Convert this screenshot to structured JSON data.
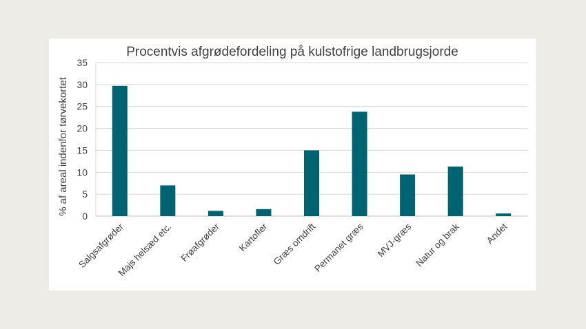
{
  "chart_data": {
    "type": "bar",
    "title": "Procentvis afgrødefordeling på kulstofrige landbrugsjorde",
    "xlabel": "",
    "ylabel": "% af areal indenfor tørvekortet",
    "ylim": [
      0,
      35
    ],
    "yticks": [
      0,
      5,
      10,
      15,
      20,
      25,
      30,
      35
    ],
    "grid": true,
    "legend": "none",
    "categories": [
      "Salgsafgrøder",
      "Majs helsæd etc.",
      "Frøafgrøder",
      "Kartofler",
      "Græs omdrift",
      "Permanet græs",
      "MVJ-græs",
      "Natur og brak",
      "Andet"
    ],
    "values": [
      29.7,
      7.0,
      1.2,
      1.6,
      15.0,
      23.8,
      9.5,
      11.3,
      0.6
    ],
    "bar_color": "#006371"
  }
}
